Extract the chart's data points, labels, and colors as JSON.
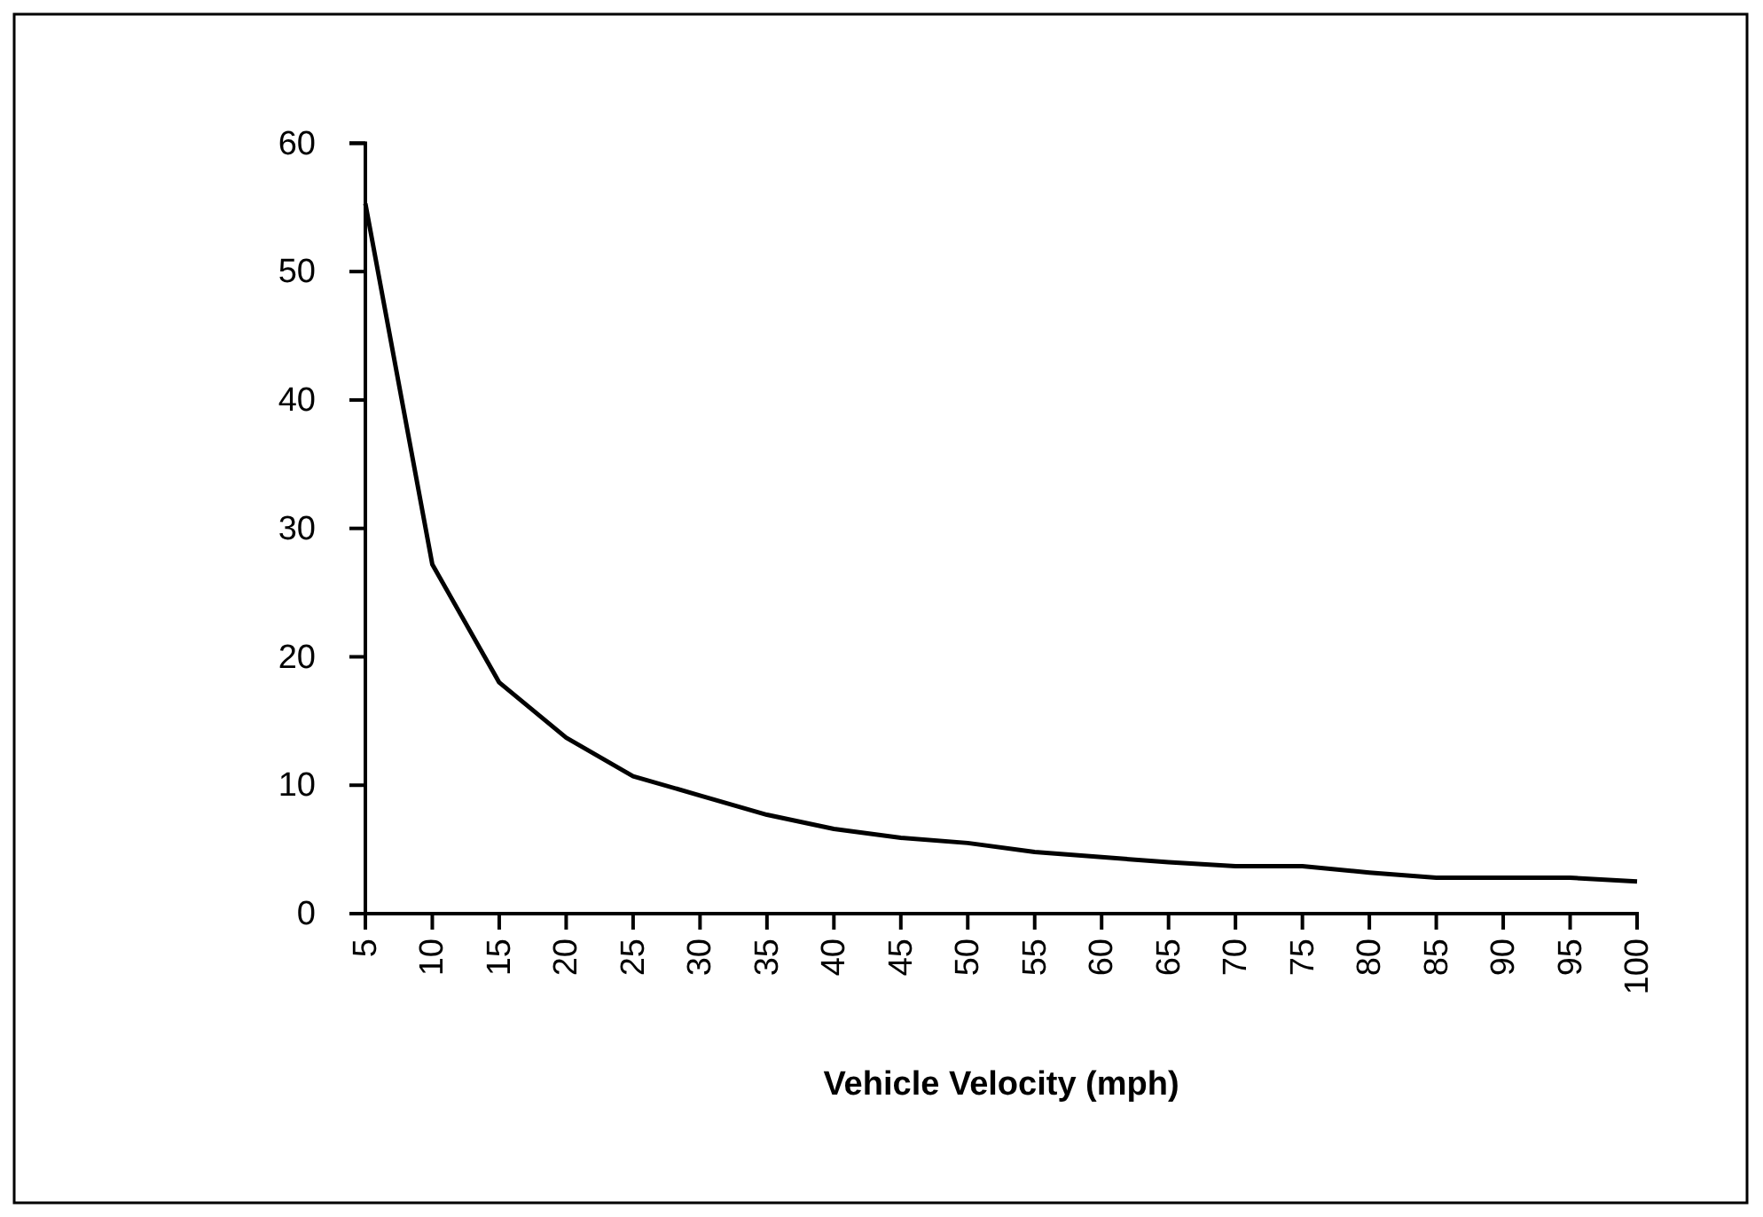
{
  "chart_data": {
    "type": "line",
    "xlabel": "Vehicle Velocity (mph)",
    "categories": [
      "5",
      "10",
      "15",
      "20",
      "25",
      "30",
      "35",
      "40",
      "45",
      "50",
      "55",
      "60",
      "65",
      "70",
      "75",
      "80",
      "85",
      "90",
      "95",
      "100"
    ],
    "series": [
      {
        "color": "#000000",
        "values": [
          55.3,
          27.2,
          18.0,
          13.7,
          10.7,
          9.2,
          7.7,
          6.6,
          5.9,
          5.5,
          4.8,
          4.4,
          4.0,
          3.7,
          3.7,
          3.2,
          2.8,
          2.8,
          2.8,
          2.5
        ]
      }
    ],
    "ylim": [
      0,
      60
    ],
    "yticks": [
      0,
      10,
      20,
      30,
      40,
      50,
      60
    ],
    "grid": false,
    "marker": "none",
    "line_style": "solid"
  }
}
